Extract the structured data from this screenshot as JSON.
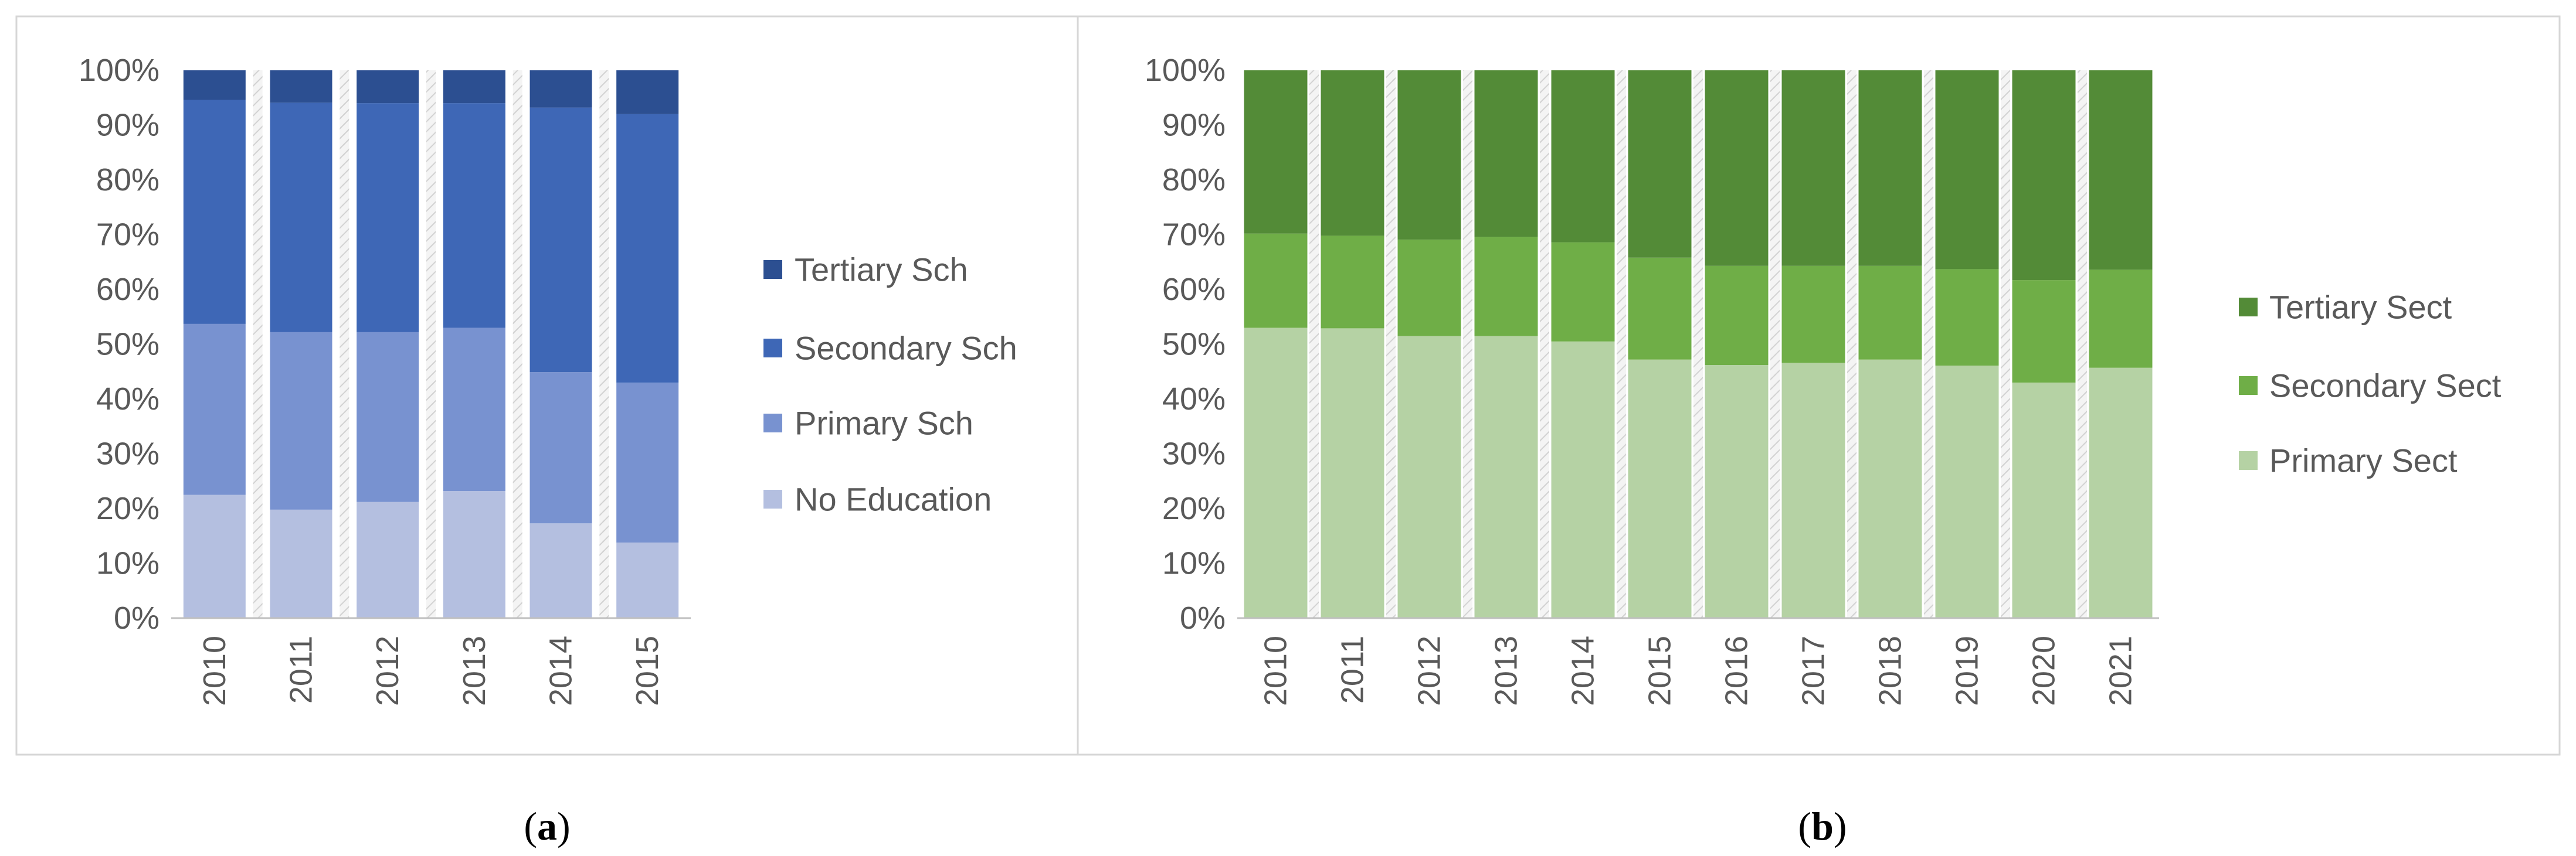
{
  "panels": {
    "a": {
      "caption_open": "(",
      "caption_letter": "a",
      "caption_close": ")"
    },
    "b": {
      "caption_open": "(",
      "caption_letter": "b",
      "caption_close": ")"
    }
  },
  "chart_data": [
    {
      "id": "a",
      "type": "bar",
      "stacked": true,
      "percent": true,
      "categories": [
        "2010",
        "2011",
        "2012",
        "2013",
        "2014",
        "2015"
      ],
      "ylim": [
        0,
        100
      ],
      "yticks": [
        "0%",
        "10%",
        "20%",
        "30%",
        "40%",
        "50%",
        "60%",
        "70%",
        "80%",
        "90%",
        "100%"
      ],
      "legend_position": "right",
      "series": [
        {
          "name": "No Education",
          "color": "#b4bfe0",
          "values": [
            22.5,
            19.8,
            21.2,
            23.2,
            17.3,
            13.8
          ]
        },
        {
          "name": "Primary Sch",
          "color": "#7892d0",
          "values": [
            31.2,
            32.4,
            31.0,
            29.8,
            27.6,
            29.2
          ]
        },
        {
          "name": "Secondary Sch",
          "color": "#3e67b6",
          "values": [
            40.9,
            41.9,
            41.8,
            41.0,
            48.3,
            49.0
          ]
        },
        {
          "name": "Tertiary Sch",
          "color": "#2c4f91",
          "values": [
            5.4,
            5.9,
            6.0,
            6.0,
            6.8,
            8.0
          ]
        }
      ],
      "legend_order": [
        "Tertiary Sch",
        "Secondary Sch",
        "Primary Sch",
        "No Education"
      ]
    },
    {
      "id": "b",
      "type": "bar",
      "stacked": true,
      "percent": true,
      "categories": [
        "2010",
        "2011",
        "2012",
        "2013",
        "2014",
        "2015",
        "2016",
        "2017",
        "2018",
        "2019",
        "2020",
        "2021"
      ],
      "ylim": [
        0,
        100
      ],
      "yticks": [
        "0%",
        "10%",
        "20%",
        "30%",
        "40%",
        "50%",
        "60%",
        "70%",
        "80%",
        "90%",
        "100%"
      ],
      "legend_position": "right",
      "series": [
        {
          "name": "Primary Sect",
          "color": "#b5d2a4",
          "values": [
            53.0,
            52.9,
            51.5,
            51.5,
            50.5,
            47.2,
            46.2,
            46.6,
            47.2,
            46.1,
            43.0,
            45.7
          ]
        },
        {
          "name": "Secondary Sect",
          "color": "#6fae47",
          "values": [
            17.2,
            16.9,
            17.6,
            18.1,
            18.1,
            18.6,
            18.1,
            17.7,
            17.1,
            17.6,
            18.7,
            17.9
          ]
        },
        {
          "name": "Tertiary Sect",
          "color": "#538b37",
          "values": [
            29.8,
            30.2,
            30.9,
            30.4,
            31.4,
            34.2,
            35.7,
            35.7,
            35.7,
            36.3,
            38.3,
            36.4
          ]
        }
      ],
      "legend_order": [
        "Tertiary Sect",
        "Secondary Sect",
        "Primary Sect"
      ]
    }
  ]
}
